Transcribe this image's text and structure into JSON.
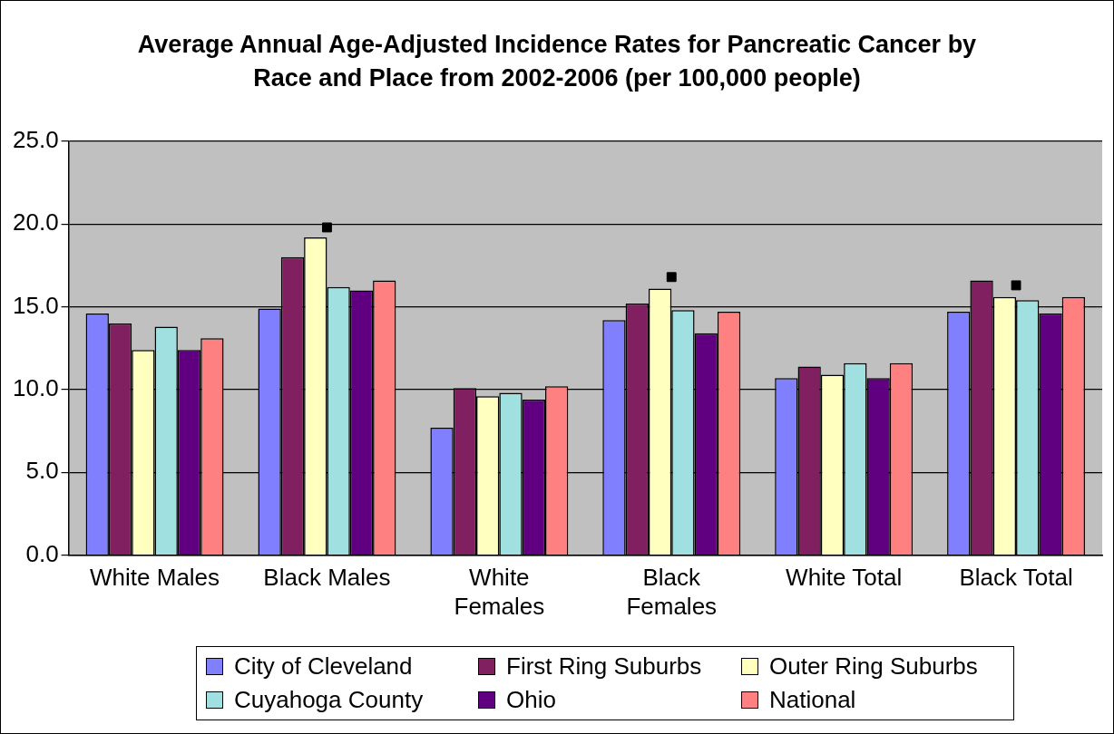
{
  "chart_data": {
    "type": "bar",
    "title": "Average Annual Age-Adjusted Incidence Rates for Pancreatic Cancer by Race and Place from 2002-2006 (per 100,000 people)",
    "categories": [
      "White Males",
      "Black Males",
      "White Females",
      "Black Females",
      "White Total",
      "Black Total"
    ],
    "series": [
      {
        "name": "City of Cleveland",
        "color": "#8080ff",
        "values": [
          14.6,
          14.9,
          7.7,
          14.2,
          10.7,
          14.7
        ]
      },
      {
        "name": "First Ring Suburbs",
        "color": "#802060",
        "values": [
          14.0,
          18.0,
          10.1,
          15.2,
          11.4,
          16.6
        ]
      },
      {
        "name": "Outer Ring Suburbs",
        "color": "#ffffc0",
        "values": [
          12.4,
          19.2,
          9.6,
          16.1,
          10.9,
          15.6
        ]
      },
      {
        "name": "Cuyahoga County",
        "color": "#a0e0e0",
        "values": [
          13.8,
          16.2,
          9.8,
          14.8,
          11.6,
          15.4
        ]
      },
      {
        "name": "Ohio",
        "color": "#600080",
        "values": [
          12.4,
          16.0,
          9.4,
          13.4,
          10.7,
          14.6
        ]
      },
      {
        "name": "National",
        "color": "#ff8080",
        "values": [
          13.1,
          16.6,
          10.2,
          14.7,
          11.6,
          15.6
        ]
      },
      {
        "type": "scatter",
        "color": "#000000",
        "marker": "square",
        "x": [
          "Black Males",
          "Black Females",
          "Black Total"
        ],
        "values": [
          19.8,
          16.8,
          16.3
        ]
      }
    ],
    "ylim": [
      0,
      25
    ],
    "yticks": [
      {
        "value": 0,
        "label": "0.0"
      },
      {
        "value": 5,
        "label": "5.0"
      },
      {
        "value": 10,
        "label": "10.0"
      },
      {
        "value": 15,
        "label": "15.0"
      },
      {
        "value": 20,
        "label": "20.0"
      },
      {
        "value": 25,
        "label": "25.0"
      }
    ],
    "grid": "y",
    "legend": "bottom"
  }
}
